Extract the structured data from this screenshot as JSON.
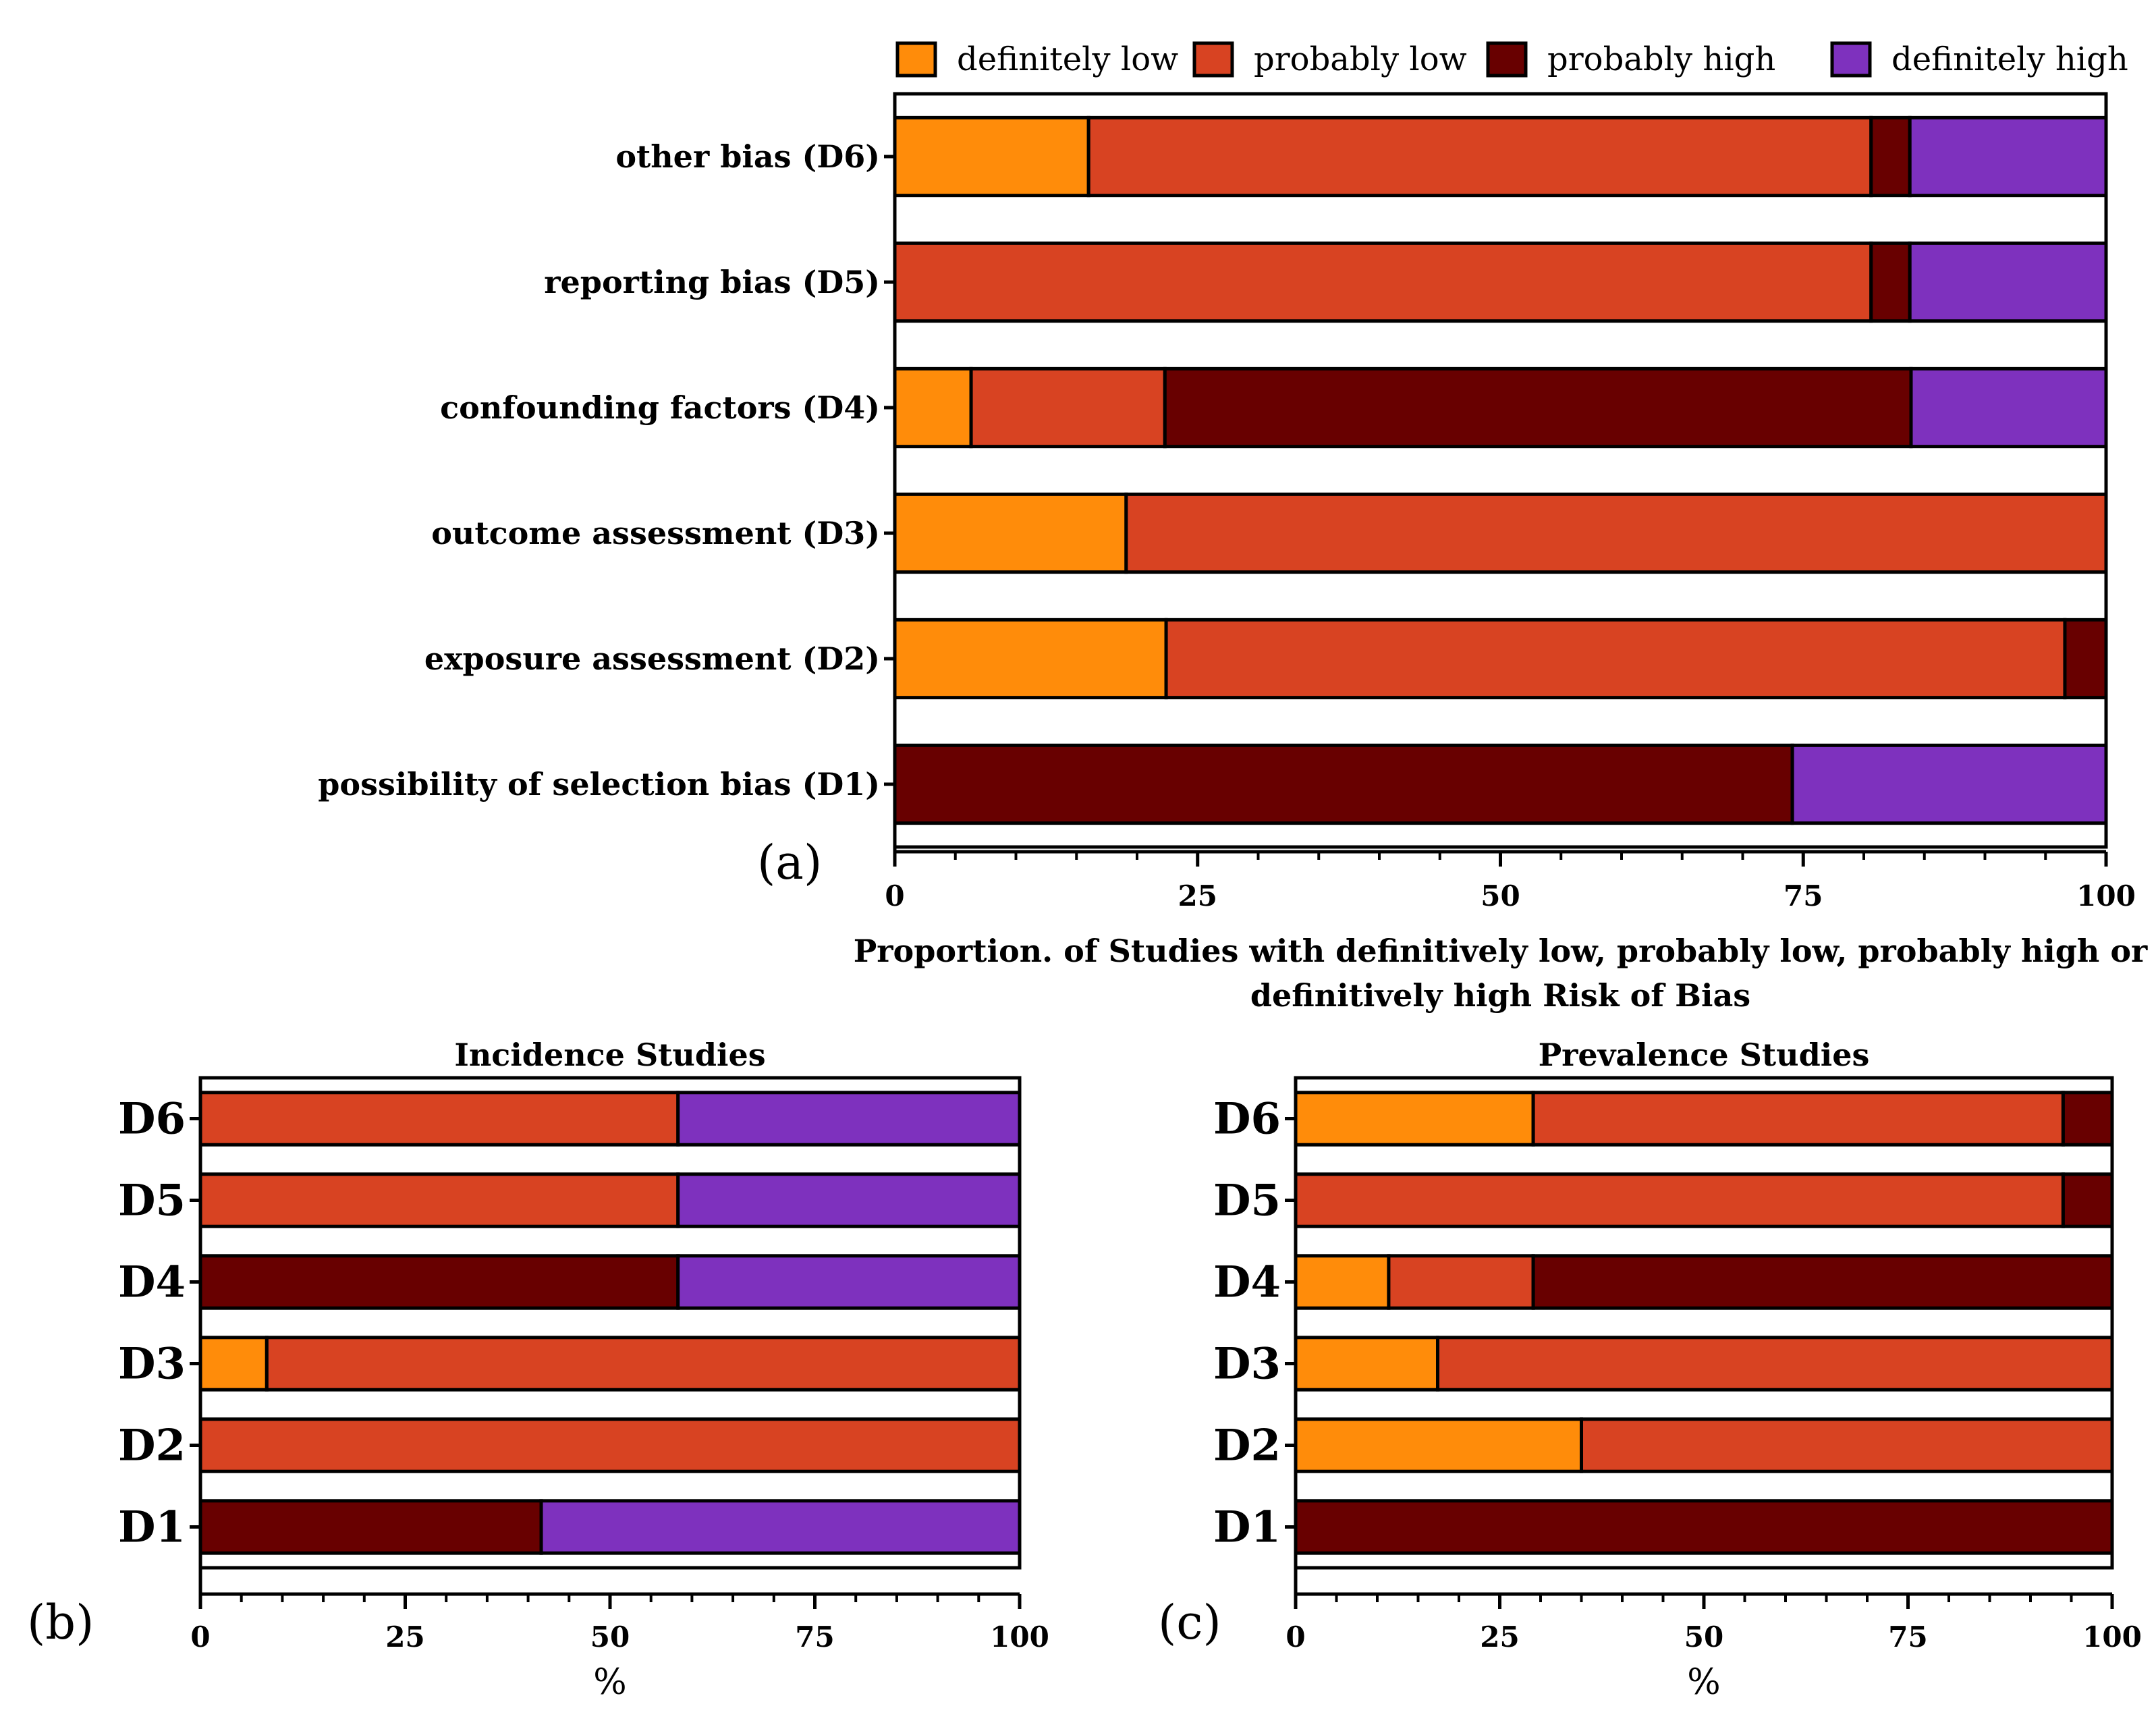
{
  "colors": {
    "definitely_low": "#ff8c0a",
    "probably_low": "#d84322",
    "probably_high": "#680000",
    "definitely_high": "#7e31be"
  },
  "legend": [
    "definitely low",
    "probably low",
    "probably high",
    "definitely high"
  ],
  "chart_data": [
    {
      "type": "bar",
      "orientation": "horizontal",
      "stacked": true,
      "panel_label": "(a)",
      "title": "",
      "xlabel": "Proportion. of Studies with definitively low, probably low, probably high or definitively high Risk of Bias",
      "ylabel": "",
      "xlim": [
        0,
        100
      ],
      "xticks": [
        "0",
        "25",
        "50",
        "75",
        "100"
      ],
      "categories": [
        "other bias (D6)",
        "reporting bias (D5)",
        "confounding factors (D4)",
        "outcome assessment (D3)",
        "exposure assessment (D2)",
        "possibility of selection bias (D1)"
      ],
      "series": [
        {
          "name": "definitely low",
          "values": [
            16,
            0,
            6.3,
            19.1,
            22.4,
            0
          ]
        },
        {
          "name": "probably low",
          "values": [
            64.6,
            80.6,
            16.0,
            80.9,
            74.2,
            0
          ]
        },
        {
          "name": "probably high",
          "values": [
            3.2,
            3.2,
            61.6,
            0,
            3.4,
            74.1
          ]
        },
        {
          "name": "definitely high",
          "values": [
            16.2,
            16.2,
            16.1,
            0,
            0,
            25.9
          ]
        }
      ]
    },
    {
      "type": "bar",
      "orientation": "horizontal",
      "stacked": true,
      "panel_label": "(b)",
      "title": "Incidence Studies",
      "xlabel": "%",
      "ylabel": "",
      "xlim": [
        0,
        100
      ],
      "xticks": [
        "0",
        "25",
        "50",
        "75",
        "100"
      ],
      "categories": [
        "D6",
        "D5",
        "D4",
        "D3",
        "D2",
        "D1"
      ],
      "series": [
        {
          "name": "definitely low",
          "values": [
            0,
            0,
            0,
            8.1,
            0,
            0
          ]
        },
        {
          "name": "probably low",
          "values": [
            58.3,
            58.3,
            0,
            91.9,
            100,
            0
          ]
        },
        {
          "name": "probably high",
          "values": [
            0,
            0,
            58.3,
            0,
            0,
            41.6
          ]
        },
        {
          "name": "definitely high",
          "values": [
            41.7,
            41.7,
            41.7,
            0,
            0,
            58.4
          ]
        }
      ]
    },
    {
      "type": "bar",
      "orientation": "horizontal",
      "stacked": true,
      "panel_label": "(c)",
      "title": "Prevalence Studies",
      "xlabel": "%",
      "ylabel": "",
      "xlim": [
        0,
        100
      ],
      "xticks": [
        "0",
        "25",
        "50",
        "75",
        "100"
      ],
      "categories": [
        "D6",
        "D5",
        "D4",
        "D3",
        "D2",
        "D1"
      ],
      "series": [
        {
          "name": "definitely low",
          "values": [
            29.1,
            0,
            11.4,
            17.4,
            35.0,
            0
          ]
        },
        {
          "name": "probably low",
          "values": [
            64.9,
            94.0,
            17.7,
            82.6,
            65.0,
            0
          ]
        },
        {
          "name": "probably high",
          "values": [
            6.0,
            6.0,
            70.9,
            0,
            0,
            100
          ]
        },
        {
          "name": "definitely high",
          "values": [
            0,
            0,
            0,
            0,
            0,
            0
          ]
        }
      ]
    }
  ]
}
